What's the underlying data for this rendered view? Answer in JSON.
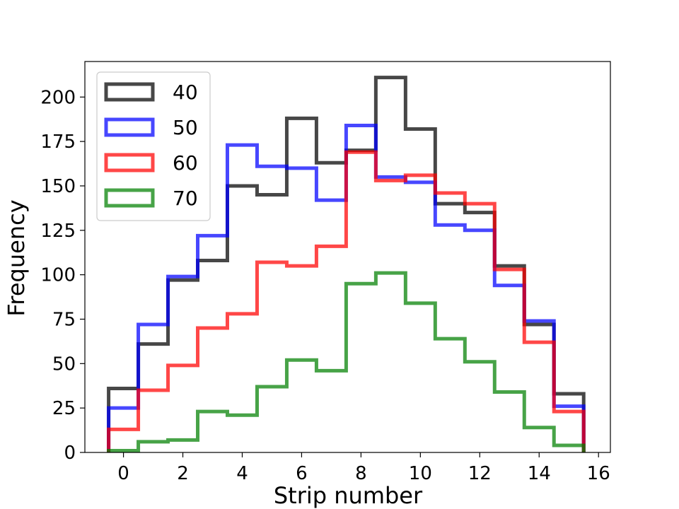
{
  "chart_data": {
    "type": "histogram",
    "title": "",
    "xlabel": "Strip number",
    "ylabel": "Frequency",
    "xlim": [
      -1.3,
      16.4
    ],
    "ylim": [
      0,
      220
    ],
    "xticks": [
      0,
      2,
      4,
      6,
      8,
      10,
      12,
      14,
      16
    ],
    "yticks": [
      0,
      25,
      50,
      75,
      100,
      125,
      150,
      175,
      200
    ],
    "bin_edges": [
      -0.5,
      0.5,
      1.5,
      2.5,
      3.5,
      4.5,
      5.5,
      6.5,
      7.5,
      8.5,
      9.5,
      10.5,
      11.5,
      12.5,
      13.5,
      14.5,
      15.5
    ],
    "legend_position": "upper-left",
    "series": [
      {
        "name": "40",
        "color": "#000000",
        "values": [
          36,
          61,
          97,
          108,
          150,
          145,
          188,
          163,
          170,
          211,
          182,
          140,
          135,
          105,
          72,
          33
        ]
      },
      {
        "name": "50",
        "color": "#0000ff",
        "values": [
          25,
          72,
          99,
          122,
          173,
          161,
          160,
          142,
          184,
          155,
          152,
          128,
          125,
          94,
          74,
          26
        ]
      },
      {
        "name": "60",
        "color": "#ff0000",
        "values": [
          13,
          35,
          49,
          70,
          78,
          107,
          105,
          116,
          169,
          153,
          156,
          146,
          140,
          103,
          62,
          23
        ]
      },
      {
        "name": "70",
        "color": "#008000",
        "values": [
          1,
          6,
          7,
          23,
          21,
          37,
          52,
          46,
          95,
          101,
          84,
          64,
          51,
          34,
          14,
          4
        ]
      }
    ]
  }
}
